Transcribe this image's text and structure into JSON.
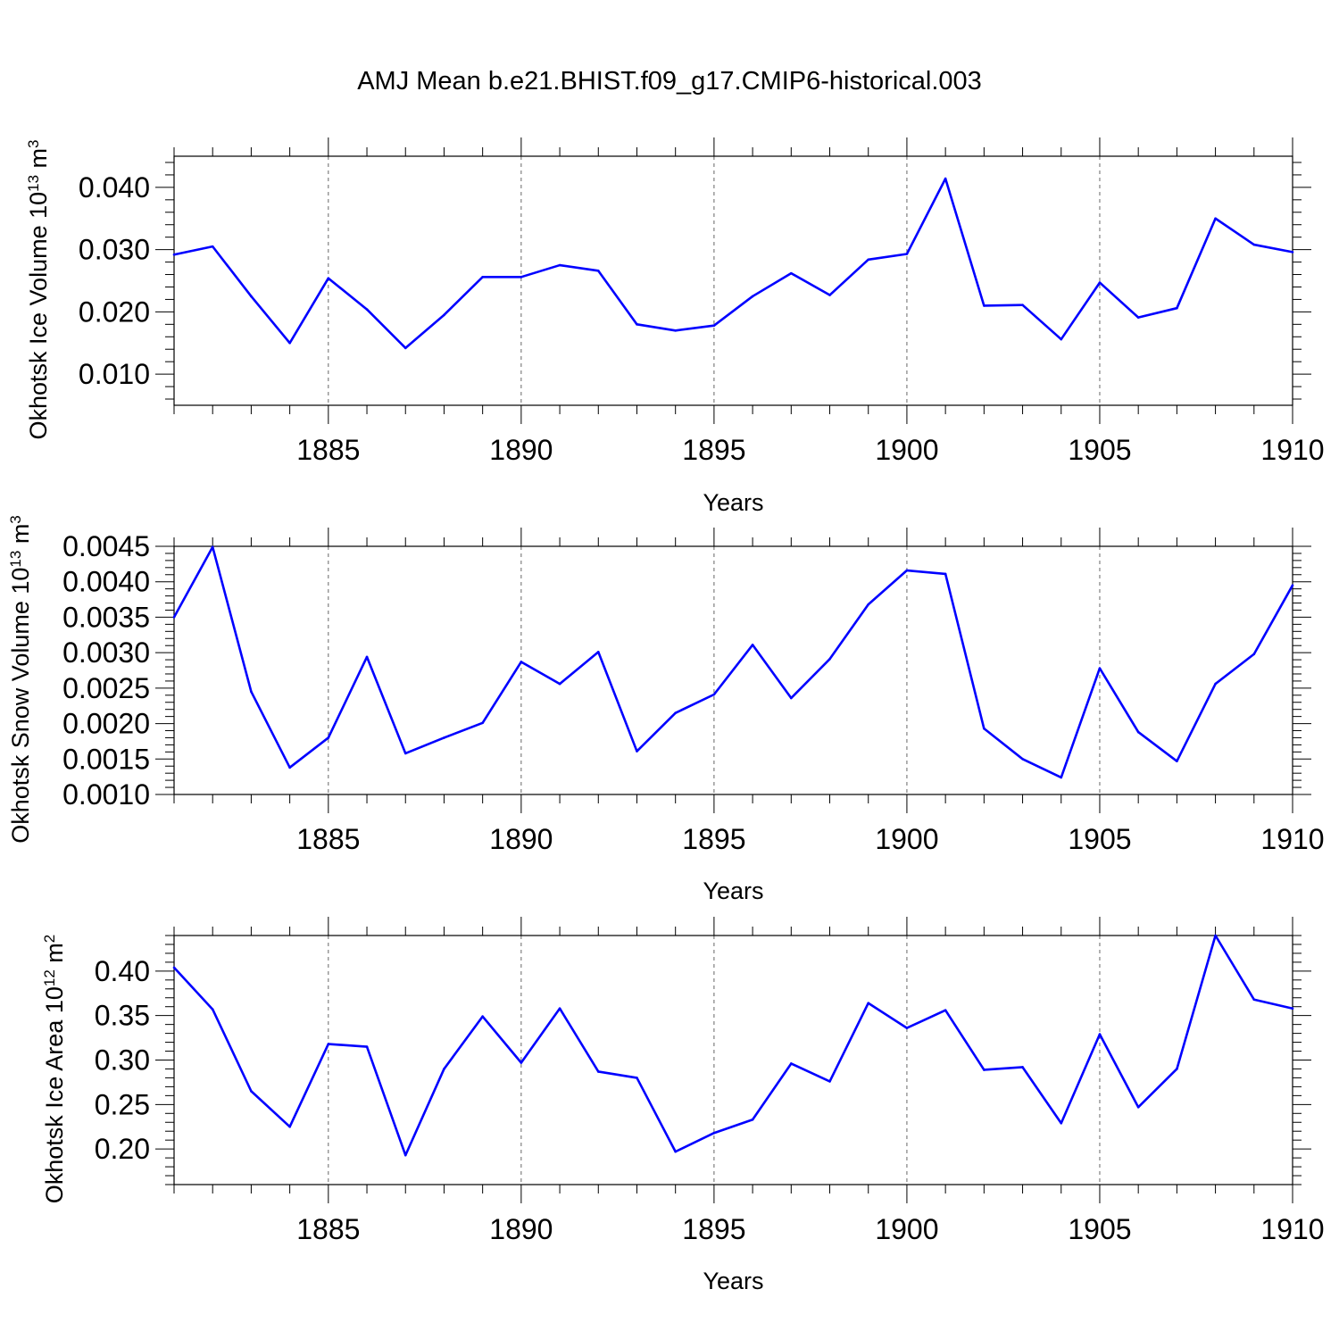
{
  "figure_title": "AMJ Mean b.e21.BHIST.f09_g17.CMIP6-historical.003",
  "colors": {
    "series": "#0000ff",
    "axes": "#000000",
    "grid": "#000000"
  },
  "chart_data": [
    {
      "type": "line",
      "title": "",
      "xlabel": "Years",
      "ylabel": {
        "text": "Okhotsk Ice Volume 10",
        "exp": "13",
        "unit": " m",
        "unit_exp": "3"
      },
      "xlim": [
        1881,
        1910
      ],
      "ylim": [
        0.005,
        0.045
      ],
      "x_ticks": [
        1885,
        1890,
        1895,
        1900,
        1905,
        1910
      ],
      "x_tick_labels": [
        "1885",
        "1890",
        "1895",
        "1900",
        "1905",
        "1910"
      ],
      "y_ticks": [
        0.01,
        0.02,
        0.03,
        0.04
      ],
      "y_tick_labels": [
        "0.010",
        "0.020",
        "0.030",
        "0.040"
      ],
      "y_minor_step": 0.002,
      "grid": "vertical dashed at major x ticks",
      "x": [
        1881,
        1882,
        1883,
        1884,
        1885,
        1886,
        1887,
        1888,
        1889,
        1890,
        1891,
        1892,
        1893,
        1894,
        1895,
        1896,
        1897,
        1898,
        1899,
        1900,
        1901,
        1902,
        1903,
        1904,
        1905,
        1906,
        1907,
        1908,
        1909,
        1910
      ],
      "series": [
        {
          "name": "Okhotsk Ice Volume",
          "values": [
            0.0292,
            0.0305,
            0.0225,
            0.015,
            0.0254,
            0.0204,
            0.0142,
            0.0195,
            0.0256,
            0.0256,
            0.0275,
            0.0266,
            0.018,
            0.017,
            0.0178,
            0.0225,
            0.0262,
            0.0227,
            0.0284,
            0.0293,
            0.0414,
            0.021,
            0.0211,
            0.0156,
            0.0247,
            0.0191,
            0.0206,
            0.035,
            0.0308,
            0.0296
          ]
        }
      ]
    },
    {
      "type": "line",
      "title": "",
      "xlabel": "Years",
      "ylabel": {
        "text": "Okhotsk Snow Volume 10",
        "exp": "13",
        "unit": " m",
        "unit_exp": "3"
      },
      "xlim": [
        1881,
        1910
      ],
      "ylim": [
        0.001,
        0.0045
      ],
      "x_ticks": [
        1885,
        1890,
        1895,
        1900,
        1905,
        1910
      ],
      "x_tick_labels": [
        "1885",
        "1890",
        "1895",
        "1900",
        "1905",
        "1910"
      ],
      "y_ticks": [
        0.001,
        0.0015,
        0.002,
        0.0025,
        0.003,
        0.0035,
        0.004,
        0.0045
      ],
      "y_tick_labels": [
        "0.0010",
        "0.0015",
        "0.0020",
        "0.0025",
        "0.0030",
        "0.0035",
        "0.0040",
        "0.0045"
      ],
      "y_minor_step": 0.0001,
      "grid": "vertical dashed at major x ticks",
      "x": [
        1881,
        1882,
        1883,
        1884,
        1885,
        1886,
        1887,
        1888,
        1889,
        1890,
        1891,
        1892,
        1893,
        1894,
        1895,
        1896,
        1897,
        1898,
        1899,
        1900,
        1901,
        1902,
        1903,
        1904,
        1905,
        1906,
        1907,
        1908,
        1909,
        1910
      ],
      "series": [
        {
          "name": "Okhotsk Snow Volume",
          "values": [
            0.0035,
            0.00449,
            0.00245,
            0.00138,
            0.0018,
            0.00294,
            0.00158,
            0.0018,
            0.00201,
            0.00287,
            0.00256,
            0.00301,
            0.00161,
            0.00215,
            0.00241,
            0.00311,
            0.00236,
            0.00291,
            0.00368,
            0.00416,
            0.00411,
            0.00193,
            0.0015,
            0.00124,
            0.00278,
            0.00188,
            0.00147,
            0.00256,
            0.00298,
            0.00395
          ]
        }
      ]
    },
    {
      "type": "line",
      "title": "",
      "xlabel": "Years",
      "ylabel": {
        "text": "Okhotsk Ice Area 10",
        "exp": "12",
        "unit": " m",
        "unit_exp": "2"
      },
      "xlim": [
        1881,
        1910
      ],
      "ylim": [
        0.16,
        0.44
      ],
      "x_ticks": [
        1885,
        1890,
        1895,
        1900,
        1905,
        1910
      ],
      "x_tick_labels": [
        "1885",
        "1890",
        "1895",
        "1900",
        "1905",
        "1910"
      ],
      "y_ticks": [
        0.2,
        0.25,
        0.3,
        0.35,
        0.4
      ],
      "y_tick_labels": [
        "0.20",
        "0.25",
        "0.30",
        "0.35",
        "0.40"
      ],
      "y_minor_step": 0.01,
      "grid": "vertical dashed at major x ticks",
      "x": [
        1881,
        1882,
        1883,
        1884,
        1885,
        1886,
        1887,
        1888,
        1889,
        1890,
        1891,
        1892,
        1893,
        1894,
        1895,
        1896,
        1897,
        1898,
        1899,
        1900,
        1901,
        1902,
        1903,
        1904,
        1905,
        1906,
        1907,
        1908,
        1909,
        1910
      ],
      "series": [
        {
          "name": "Okhotsk Ice Area",
          "values": [
            0.404,
            0.357,
            0.265,
            0.225,
            0.318,
            0.315,
            0.193,
            0.29,
            0.349,
            0.297,
            0.358,
            0.287,
            0.28,
            0.197,
            0.218,
            0.233,
            0.296,
            0.276,
            0.364,
            0.336,
            0.356,
            0.289,
            0.292,
            0.229,
            0.329,
            0.247,
            0.29,
            0.44,
            0.368,
            0.358
          ]
        }
      ]
    }
  ]
}
